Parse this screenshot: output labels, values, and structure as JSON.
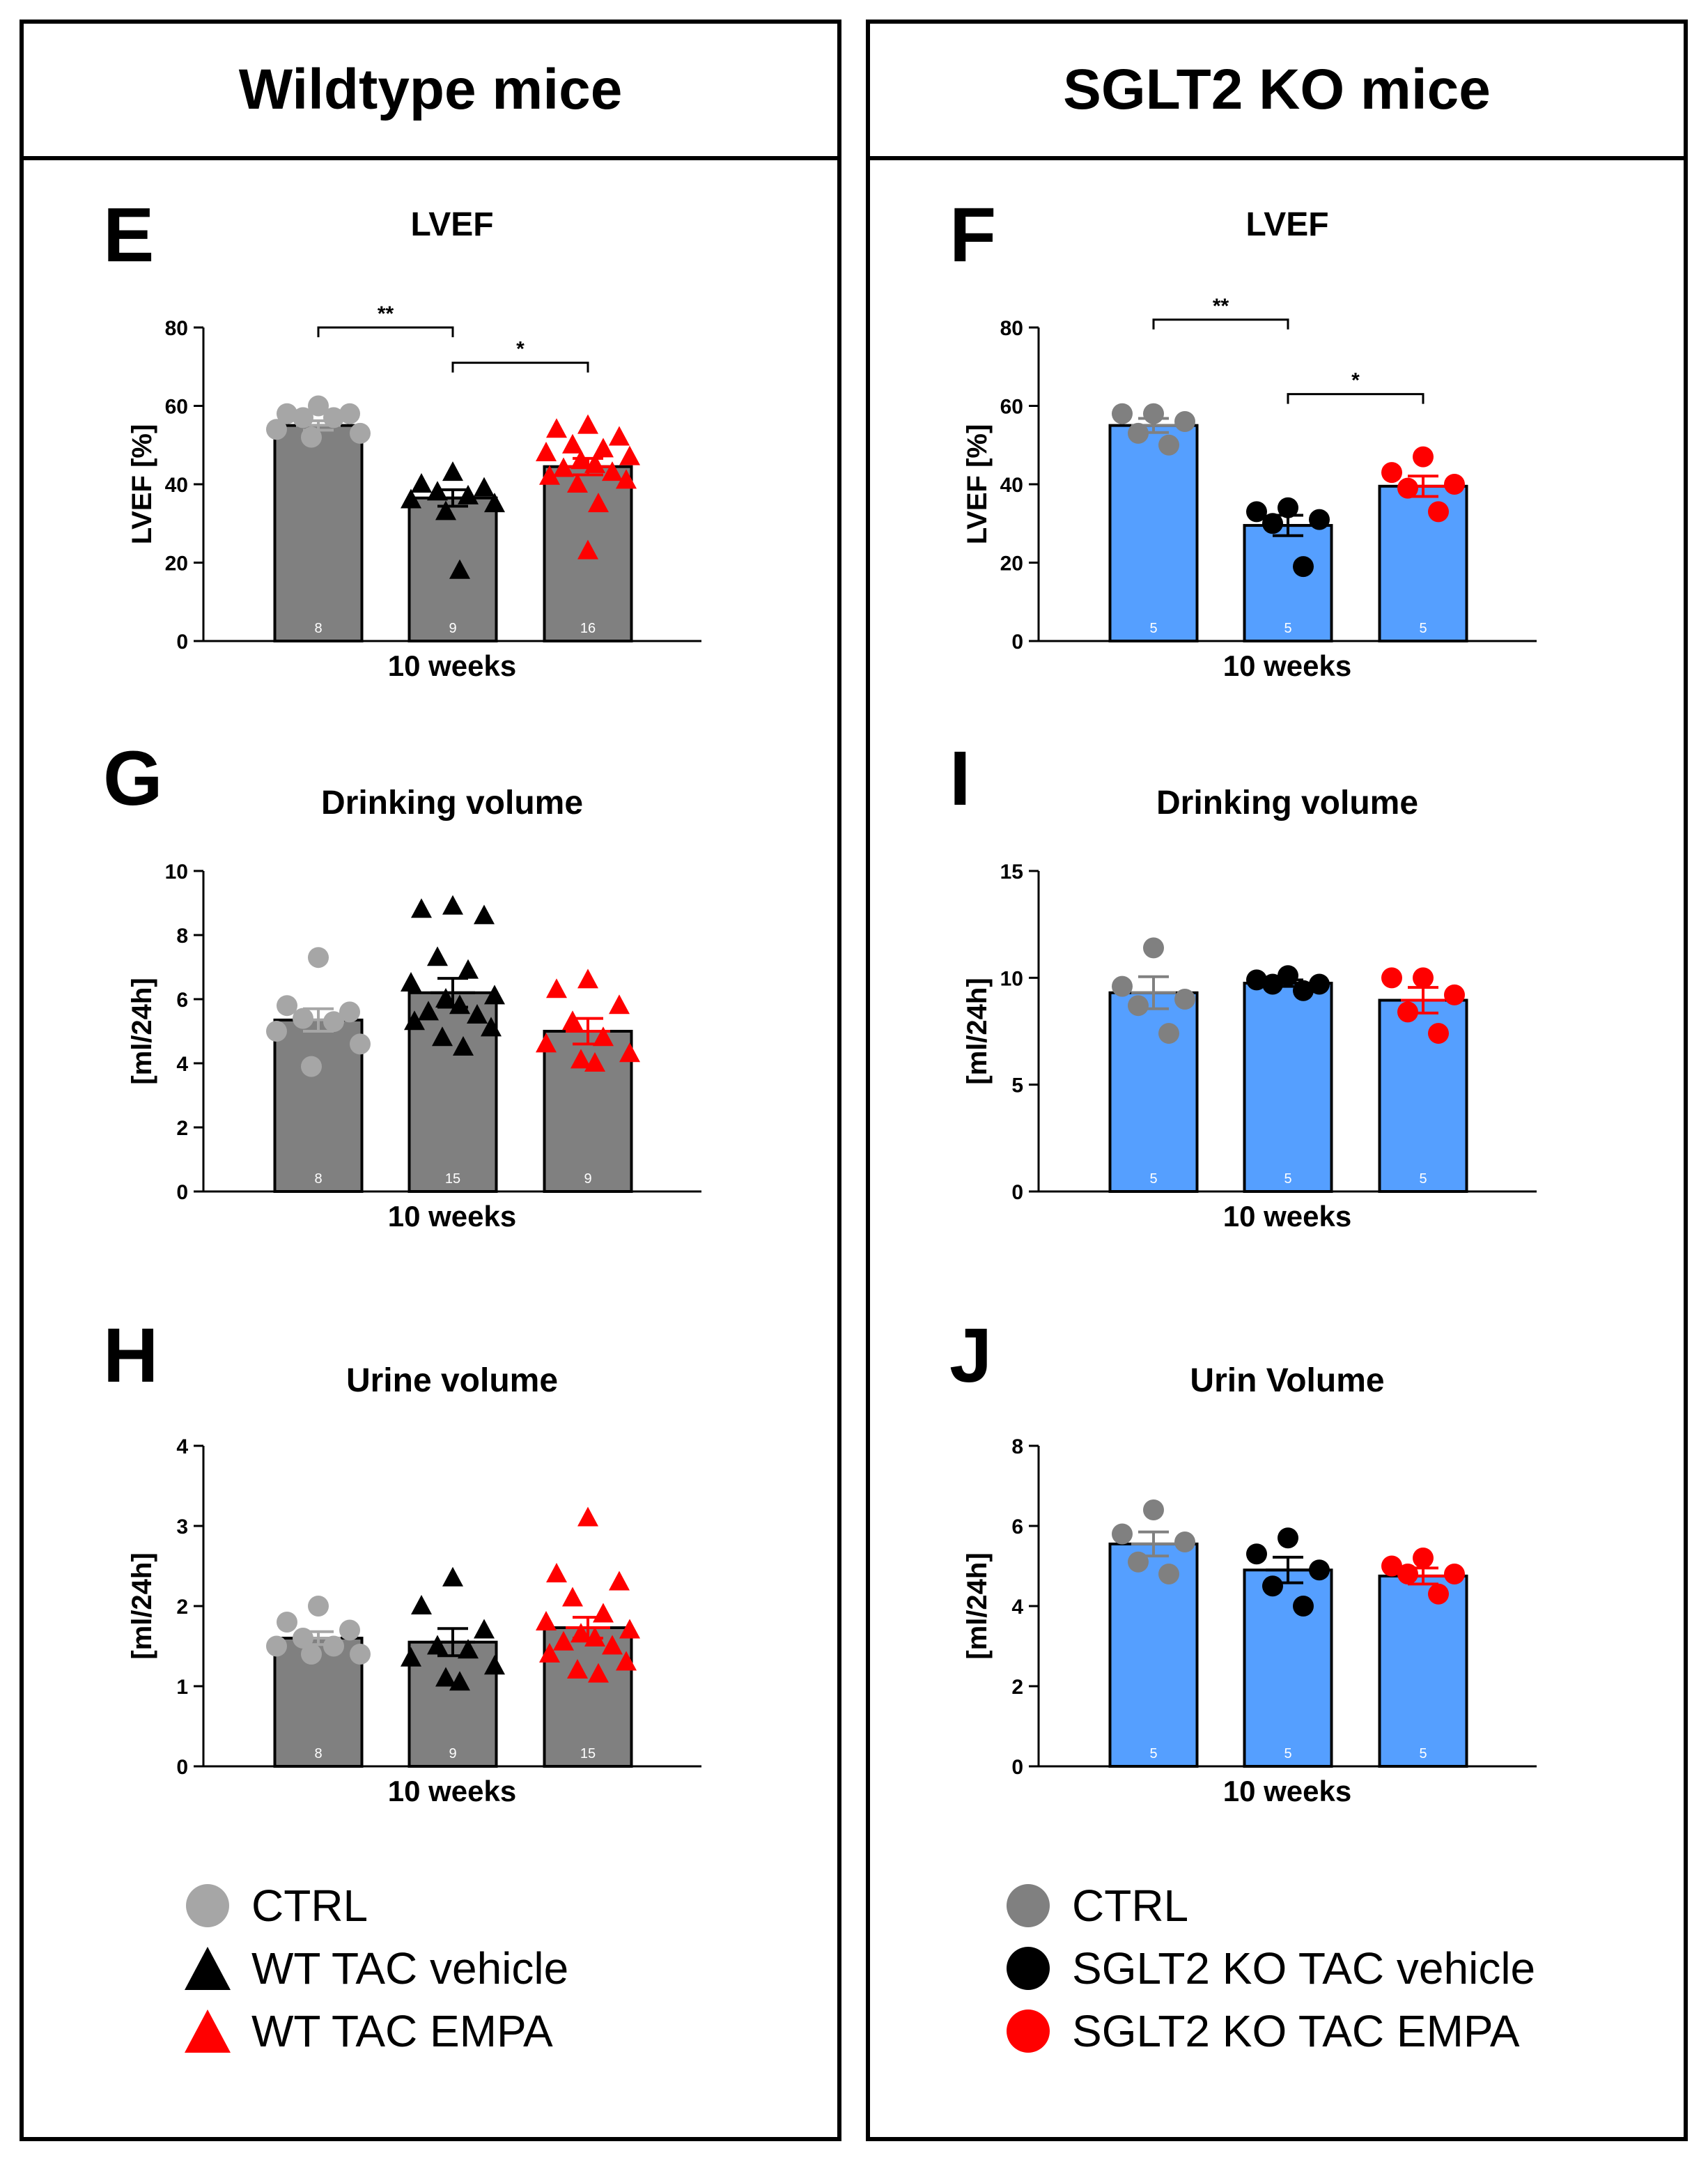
{
  "headers": {
    "left": "Wildtype mice",
    "right": "SGLT2 KO mice"
  },
  "colors": {
    "gray_bar": "#808080",
    "blue_bar": "#559FFF",
    "ctrl_wt": "#A6A6A6",
    "ctrl_ko": "#808080",
    "black": "#000000",
    "red": "#FF0000"
  },
  "legend_left": [
    {
      "label": "CTRL",
      "shape": "circle",
      "color": "#A6A6A6"
    },
    {
      "label": "WT TAC vehicle",
      "shape": "triangle",
      "color": "#000000"
    },
    {
      "label": "WT TAC EMPA",
      "shape": "triangle",
      "color": "#FF0000"
    }
  ],
  "legend_right": [
    {
      "label": "CTRL",
      "shape": "circle",
      "color": "#808080"
    },
    {
      "label": "SGLT2 KO TAC vehicle",
      "shape": "circle",
      "color": "#000000"
    },
    {
      "label": "SGLT2 KO TAC EMPA",
      "shape": "circle",
      "color": "#FF0000"
    }
  ],
  "chart_data": [
    {
      "id": "E",
      "panel_letter": "E",
      "type": "bar",
      "title": "LVEF",
      "ylabel": "LVEF [%]",
      "xlabel": "10 weeks",
      "ylim": [
        0,
        80
      ],
      "yticks": [
        0,
        20,
        40,
        60,
        80
      ],
      "bar_color": "#808080",
      "marker": "triangle",
      "groups": [
        {
          "name": "CTRL",
          "mean": 55,
          "sem": 1.2,
          "n": "8",
          "color": "#A6A6A6",
          "marker": "circle",
          "points": [
            60,
            58,
            58,
            57,
            57,
            54,
            53,
            52
          ]
        },
        {
          "name": "WT TAC vehicle",
          "mean": 36.5,
          "sem": 2.1,
          "n": "9",
          "color": "#000000",
          "marker": "triangle",
          "points": [
            43,
            40,
            39,
            38,
            37,
            36,
            35,
            33,
            18
          ]
        },
        {
          "name": "WT TAC EMPA",
          "mean": 44.5,
          "sem": 2.1,
          "n": "16",
          "color": "#FF0000",
          "marker": "triangle",
          "points": [
            55,
            54,
            52,
            50,
            49,
            48,
            47,
            46,
            45,
            44,
            43,
            42,
            41,
            40,
            35,
            23
          ]
        }
      ],
      "significance": [
        {
          "from": 0,
          "to": 1,
          "label": "**",
          "y": 80
        },
        {
          "from": 1,
          "to": 2,
          "label": "*",
          "y": 71
        }
      ]
    },
    {
      "id": "F",
      "panel_letter": "F",
      "type": "bar",
      "title": "LVEF",
      "ylabel": "LVEF [%]",
      "xlabel": "10 weeks",
      "ylim": [
        0,
        80
      ],
      "yticks": [
        0,
        20,
        40,
        60,
        80
      ],
      "bar_color": "#559FFF",
      "marker": "circle",
      "groups": [
        {
          "name": "CTRL",
          "mean": 55,
          "sem": 1.8,
          "n": "5",
          "color": "#808080",
          "marker": "circle",
          "points": [
            58,
            58,
            56,
            53,
            50
          ]
        },
        {
          "name": "SGLT2 KO TAC vehicle",
          "mean": 29.5,
          "sem": 2.6,
          "n": "5",
          "color": "#000000",
          "marker": "circle",
          "points": [
            34,
            33,
            31,
            30,
            19
          ]
        },
        {
          "name": "SGLT2 KO TAC EMPA",
          "mean": 39.5,
          "sem": 2.6,
          "n": "5",
          "color": "#FF0000",
          "marker": "circle",
          "points": [
            47,
            43,
            40,
            39,
            33
          ]
        }
      ],
      "significance": [
        {
          "from": 0,
          "to": 1,
          "label": "**",
          "y": 82
        },
        {
          "from": 1,
          "to": 2,
          "label": "*",
          "y": 63
        }
      ]
    },
    {
      "id": "G",
      "panel_letter": "G",
      "type": "bar",
      "title": "Drinking volume",
      "ylabel": "[ml/24h]",
      "xlabel": "10 weeks",
      "ylim": [
        0,
        10
      ],
      "yticks": [
        0,
        2,
        4,
        6,
        8,
        10
      ],
      "bar_color": "#808080",
      "marker": "triangle",
      "groups": [
        {
          "name": "CTRL",
          "mean": 5.35,
          "sem": 0.35,
          "n": "8",
          "color": "#A6A6A6",
          "marker": "circle",
          "points": [
            7.3,
            5.8,
            5.6,
            5.4,
            5.3,
            5.0,
            4.6,
            3.9
          ]
        },
        {
          "name": "WT TAC vehicle",
          "mean": 6.2,
          "sem": 0.45,
          "n": "15",
          "color": "#000000",
          "marker": "triangle",
          "points": [
            8.9,
            8.8,
            8.6,
            7.3,
            6.9,
            6.5,
            6.1,
            6.0,
            5.8,
            5.6,
            5.5,
            5.3,
            5.1,
            4.8,
            4.5
          ]
        },
        {
          "name": "WT TAC EMPA",
          "mean": 5.0,
          "sem": 0.4,
          "n": "9",
          "color": "#FF0000",
          "marker": "triangle",
          "points": [
            6.6,
            6.3,
            5.8,
            5.3,
            4.8,
            4.6,
            4.3,
            4.1,
            4.0
          ]
        }
      ],
      "significance": []
    },
    {
      "id": "I",
      "panel_letter": "I",
      "type": "bar",
      "title": "Drinking volume",
      "ylabel": "[ml/24h]",
      "xlabel": "10 weeks",
      "ylim": [
        0,
        15
      ],
      "yticks": [
        0,
        5,
        10,
        15
      ],
      "bar_color": "#559FFF",
      "marker": "circle",
      "groups": [
        {
          "name": "CTRL",
          "mean": 9.3,
          "sem": 0.75,
          "n": "5",
          "color": "#808080",
          "marker": "circle",
          "points": [
            11.4,
            9.6,
            9.0,
            8.7,
            7.4
          ]
        },
        {
          "name": "SGLT2 KO TAC vehicle",
          "mean": 9.75,
          "sem": 0.15,
          "n": "5",
          "color": "#000000",
          "marker": "circle",
          "points": [
            10.1,
            9.9,
            9.7,
            9.7,
            9.4
          ]
        },
        {
          "name": "SGLT2 KO TAC EMPA",
          "mean": 8.95,
          "sem": 0.6,
          "n": "5",
          "color": "#FF0000",
          "marker": "circle",
          "points": [
            10.0,
            10.0,
            9.2,
            8.4,
            7.4
          ]
        }
      ],
      "significance": []
    },
    {
      "id": "H",
      "panel_letter": "H",
      "type": "bar",
      "title": "Urine volume",
      "ylabel": "[ml/24h]",
      "xlabel": "10 weeks",
      "ylim": [
        0,
        4
      ],
      "yticks": [
        0,
        1,
        2,
        3,
        4
      ],
      "bar_color": "#808080",
      "marker": "triangle",
      "groups": [
        {
          "name": "CTRL",
          "mean": 1.6,
          "sem": 0.08,
          "n": "8",
          "color": "#A6A6A6",
          "marker": "circle",
          "points": [
            2.0,
            1.8,
            1.7,
            1.6,
            1.5,
            1.5,
            1.4,
            1.4
          ]
        },
        {
          "name": "WT TAC vehicle",
          "mean": 1.55,
          "sem": 0.17,
          "n": "9",
          "color": "#000000",
          "marker": "triangle",
          "points": [
            2.35,
            2.0,
            1.7,
            1.5,
            1.45,
            1.35,
            1.25,
            1.1,
            1.05
          ]
        },
        {
          "name": "WT TAC EMPA",
          "mean": 1.73,
          "sem": 0.13,
          "n": "15",
          "color": "#FF0000",
          "marker": "triangle",
          "points": [
            3.1,
            2.4,
            2.3,
            2.1,
            1.9,
            1.8,
            1.7,
            1.65,
            1.6,
            1.55,
            1.5,
            1.4,
            1.3,
            1.2,
            1.15
          ]
        }
      ],
      "significance": []
    },
    {
      "id": "J",
      "panel_letter": "J",
      "type": "bar",
      "title": "Urin Volume",
      "ylabel": "[ml/24h]",
      "xlabel": "10 weeks",
      "ylim": [
        0,
        8
      ],
      "yticks": [
        0,
        2,
        4,
        6,
        8
      ],
      "bar_color": "#559FFF",
      "marker": "circle",
      "groups": [
        {
          "name": "CTRL",
          "mean": 5.55,
          "sem": 0.3,
          "n": "5",
          "color": "#808080",
          "marker": "circle",
          "points": [
            6.4,
            5.8,
            5.6,
            5.1,
            4.8
          ]
        },
        {
          "name": "SGLT2 KO TAC vehicle",
          "mean": 4.9,
          "sem": 0.32,
          "n": "5",
          "color": "#000000",
          "marker": "circle",
          "points": [
            5.7,
            5.3,
            4.9,
            4.5,
            4.0
          ]
        },
        {
          "name": "SGLT2 KO TAC EMPA",
          "mean": 4.75,
          "sem": 0.2,
          "n": "5",
          "color": "#FF0000",
          "marker": "circle",
          "points": [
            5.2,
            5.0,
            4.8,
            4.8,
            4.3
          ]
        }
      ],
      "significance": []
    }
  ]
}
